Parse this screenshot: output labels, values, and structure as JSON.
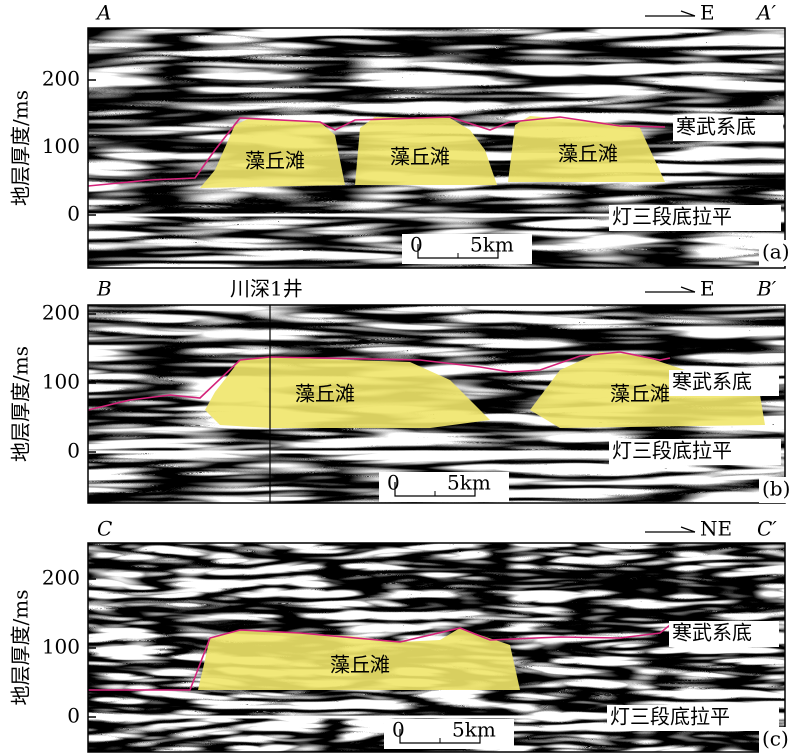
{
  "panels": [
    {
      "left_label": "A",
      "right_label": "A′",
      "direction": "E",
      "well": null,
      "y_axis_label": "地层厚度/ms",
      "yticks": [
        0,
        100,
        200
      ],
      "top_label": "寒武系底",
      "bottom_label": "灯三段底拉平",
      "scale_bar": {
        "start": "0",
        "end": "5km"
      },
      "bodies": [
        "藻丘滩",
        "藻丘滩",
        "藻丘滩"
      ],
      "tag": "(a)"
    },
    {
      "left_label": "B",
      "right_label": "B′",
      "direction": "E",
      "well": "川深1井",
      "y_axis_label": "地层厚度/ms",
      "yticks": [
        0,
        100,
        200
      ],
      "top_label": "寒武系底",
      "bottom_label": "灯三段底拉平",
      "scale_bar": {
        "start": "0",
        "end": "5km"
      },
      "bodies": [
        "藻丘滩",
        "藻丘滩"
      ],
      "tag": "(b)"
    },
    {
      "left_label": "C",
      "right_label": "C′",
      "direction": "NE",
      "well": null,
      "y_axis_label": "地层厚度/ms",
      "yticks": [
        0,
        100,
        200
      ],
      "top_label": "寒武系底",
      "bottom_label": "灯三段底拉平",
      "scale_bar": {
        "start": "0",
        "end": "5km"
      },
      "bodies": [
        "藻丘滩"
      ],
      "tag": "(c)"
    }
  ]
}
